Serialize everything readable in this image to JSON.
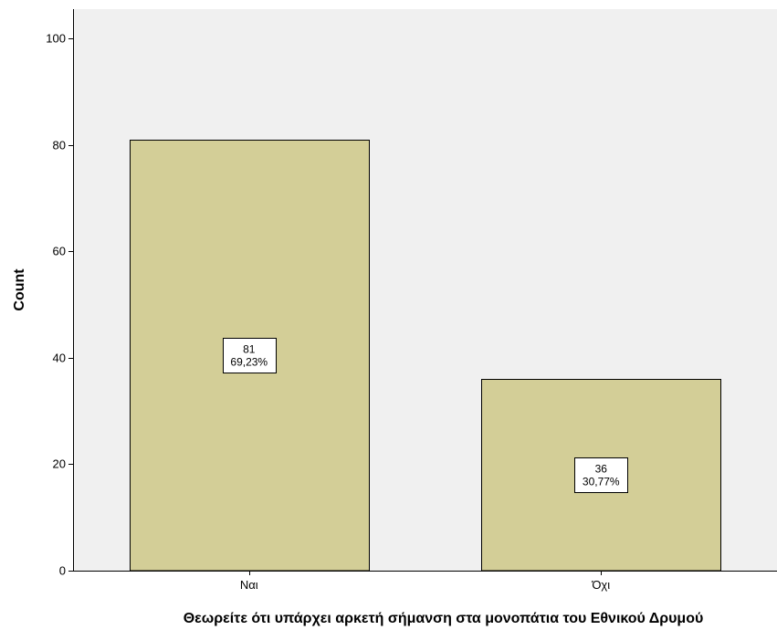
{
  "chart_data": {
    "type": "bar",
    "categories": [
      "Ναι",
      "Όχι"
    ],
    "values": [
      81,
      36
    ],
    "percent_labels": [
      "69,23%",
      "30,77%"
    ],
    "title": "",
    "xlabel": "Θεωρείτε ότι υπάρχει αρκετή σήμανση στα μονοπάτια του Εθνικού Δρυμού",
    "ylabel": "Count",
    "ylim": [
      0,
      100
    ],
    "y_ticks": [
      0,
      20,
      40,
      60,
      80,
      100
    ],
    "grid": false,
    "colors": {
      "plot_background": "#f0f0f0",
      "bar_fill": "#d3ce97",
      "bar_stroke": "#000000"
    }
  }
}
